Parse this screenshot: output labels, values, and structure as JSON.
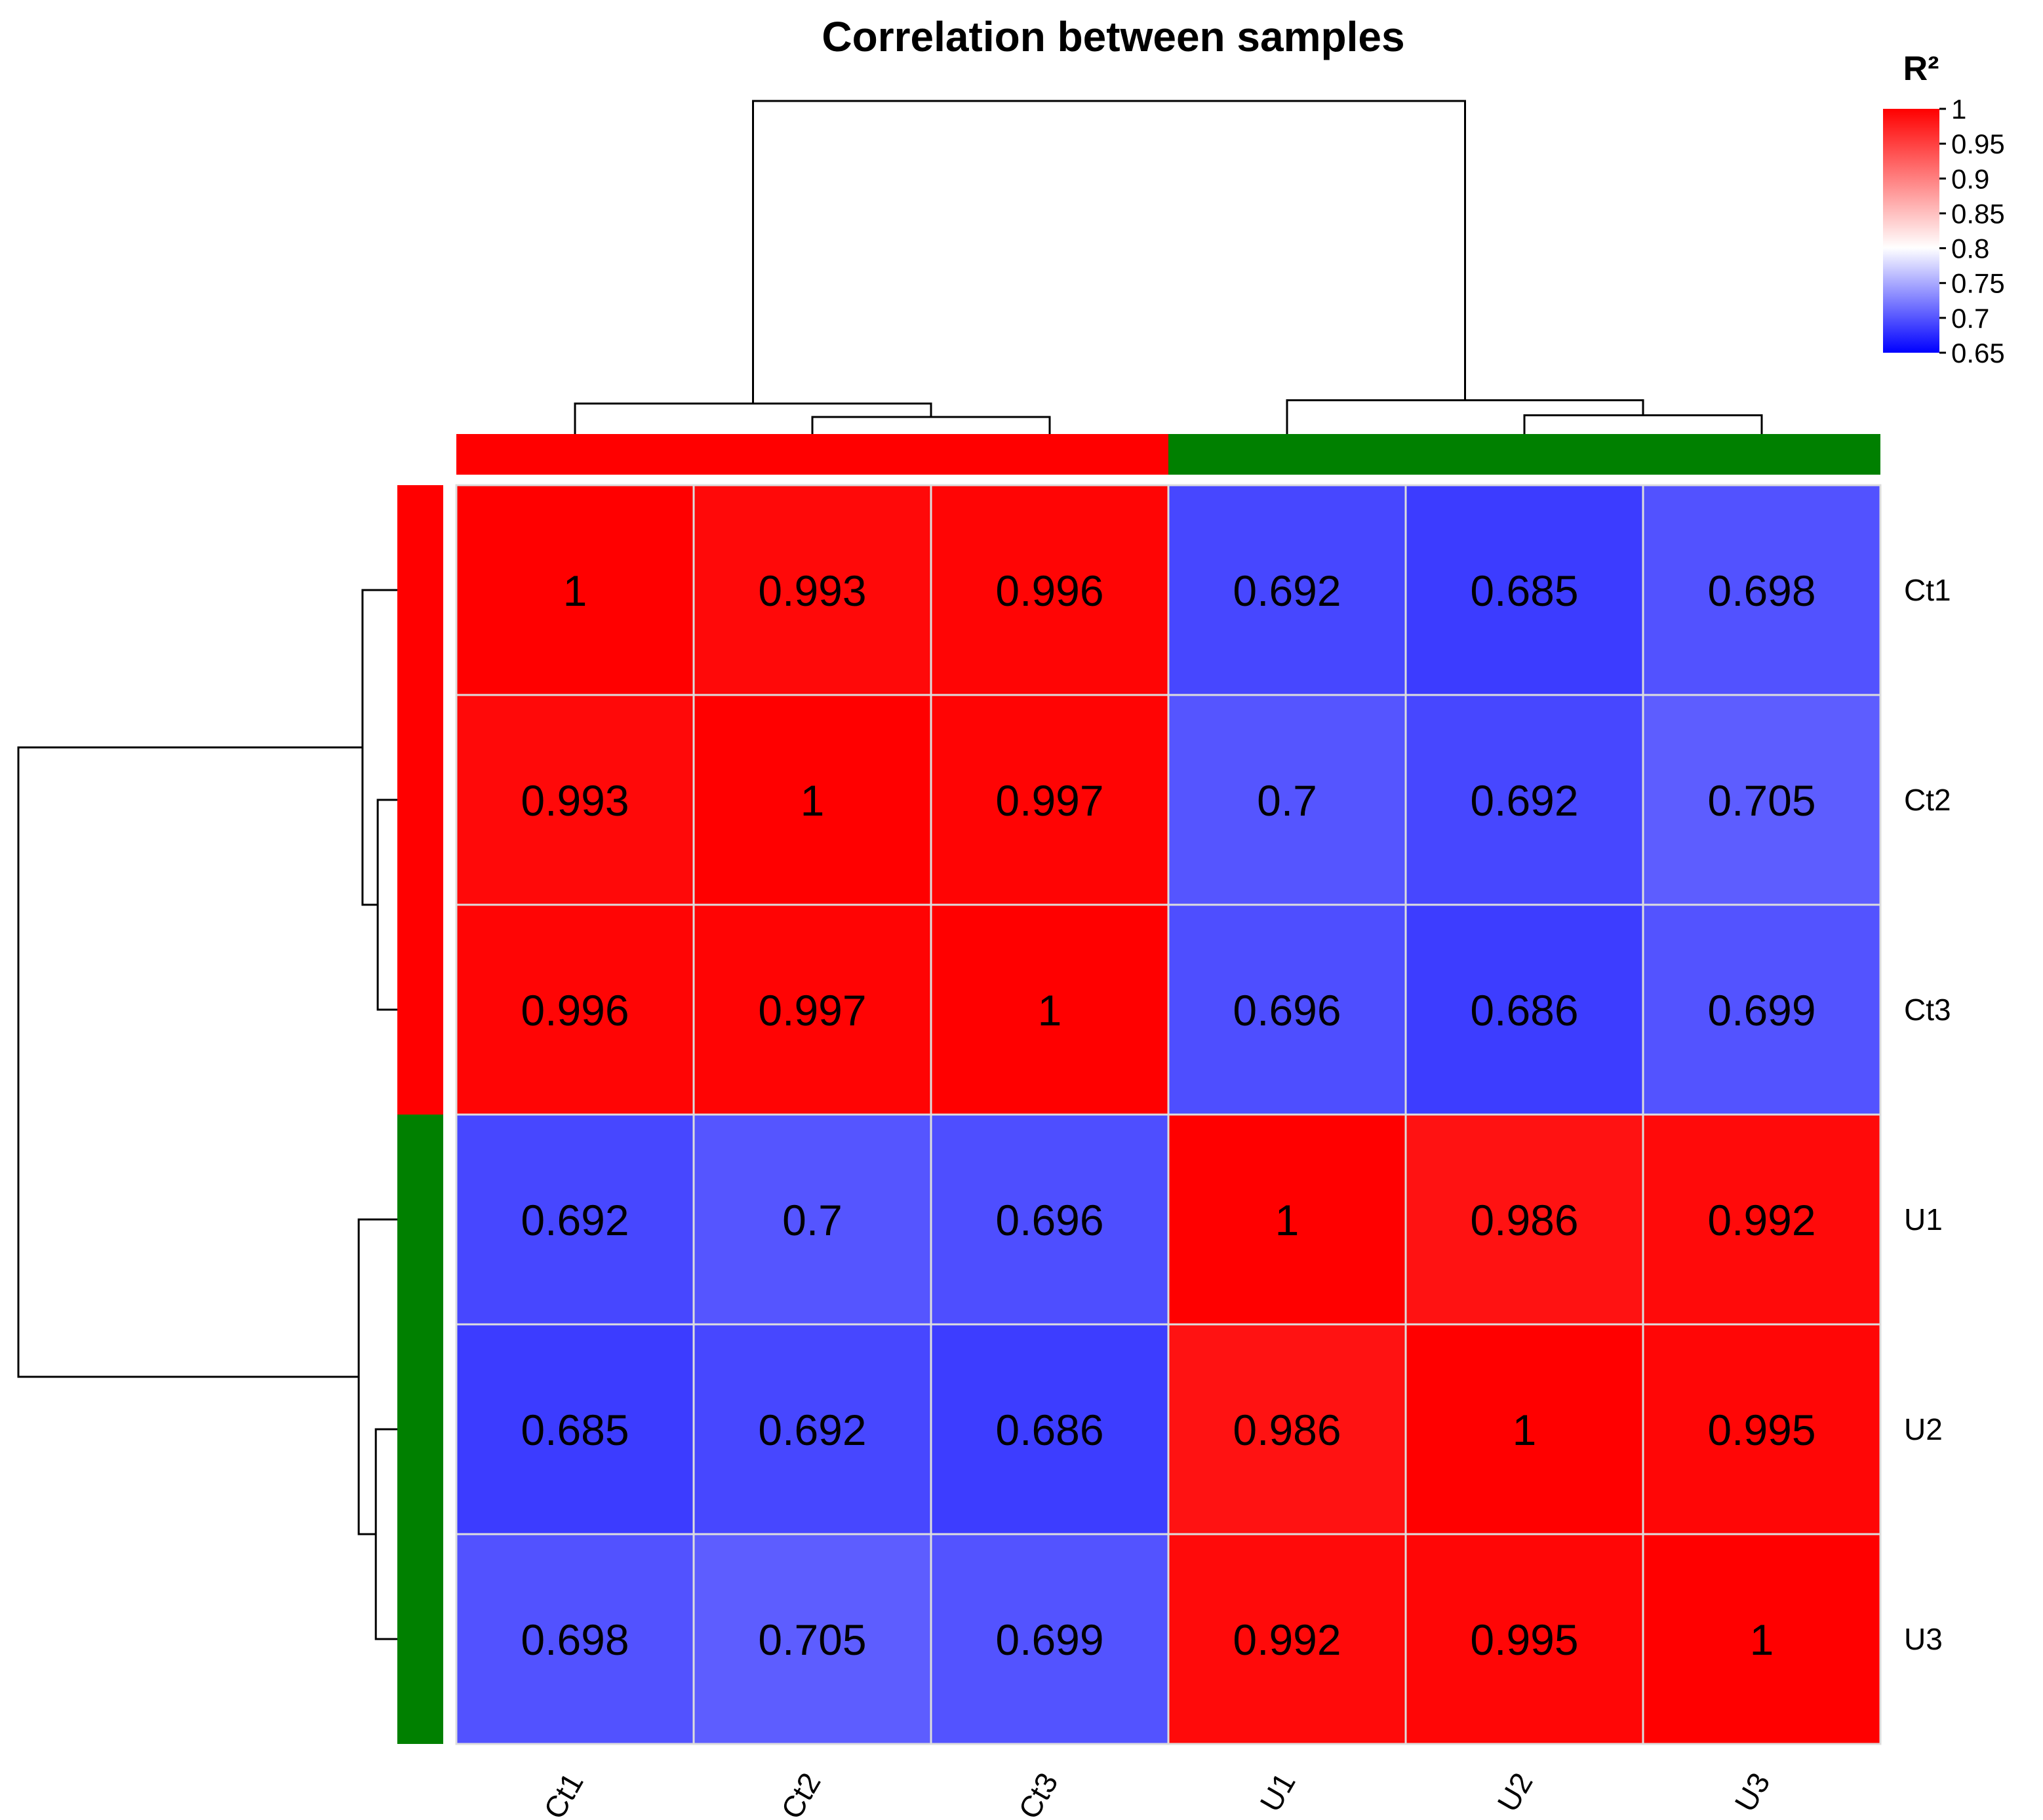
{
  "chart_data": {
    "type": "heatmap",
    "title": "Correlation between samples",
    "rows": [
      "Ct1",
      "Ct2",
      "Ct3",
      "U1",
      "U2",
      "U3"
    ],
    "columns": [
      "Ct1",
      "Ct2",
      "Ct3",
      "U1",
      "U2",
      "U3"
    ],
    "values": [
      [
        1,
        0.993,
        0.996,
        0.692,
        0.685,
        0.698
      ],
      [
        0.993,
        1,
        0.997,
        0.7,
        0.692,
        0.705
      ],
      [
        0.996,
        0.997,
        1,
        0.696,
        0.686,
        0.699
      ],
      [
        0.692,
        0.7,
        0.696,
        1,
        0.986,
        0.992
      ],
      [
        0.685,
        0.692,
        0.686,
        0.986,
        1,
        0.995
      ],
      [
        0.698,
        0.705,
        0.699,
        0.992,
        0.995,
        1
      ]
    ],
    "groups": [
      {
        "name": "Ct",
        "members": [
          "Ct1",
          "Ct2",
          "Ct3"
        ],
        "color": "#ff0000"
      },
      {
        "name": "U",
        "members": [
          "U1",
          "U2",
          "U3"
        ],
        "color": "#008000"
      }
    ],
    "dendrogram": {
      "merges": [
        {
          "items": [
            "Ct2",
            "Ct3"
          ],
          "level": 0.22
        },
        {
          "items": [
            "Ct1",
            "Ct2+Ct3"
          ],
          "level": 0.38
        },
        {
          "items": [
            "U2",
            "U3"
          ],
          "level": 0.24
        },
        {
          "items": [
            "U1",
            "U2+U3"
          ],
          "level": 0.42
        },
        {
          "items": [
            "Ct",
            "U"
          ],
          "level": 2.2
        }
      ]
    },
    "legend": {
      "title": "R²",
      "range": [
        0.65,
        1
      ],
      "ticks": [
        "1",
        "0.95",
        "0.9",
        "0.85",
        "0.8",
        "0.75",
        "0.7",
        "0.65"
      ],
      "low_color": "#0000ff",
      "mid_color": "#ffffff",
      "mid_value": 0.8,
      "high_color": "#ff0000"
    }
  }
}
